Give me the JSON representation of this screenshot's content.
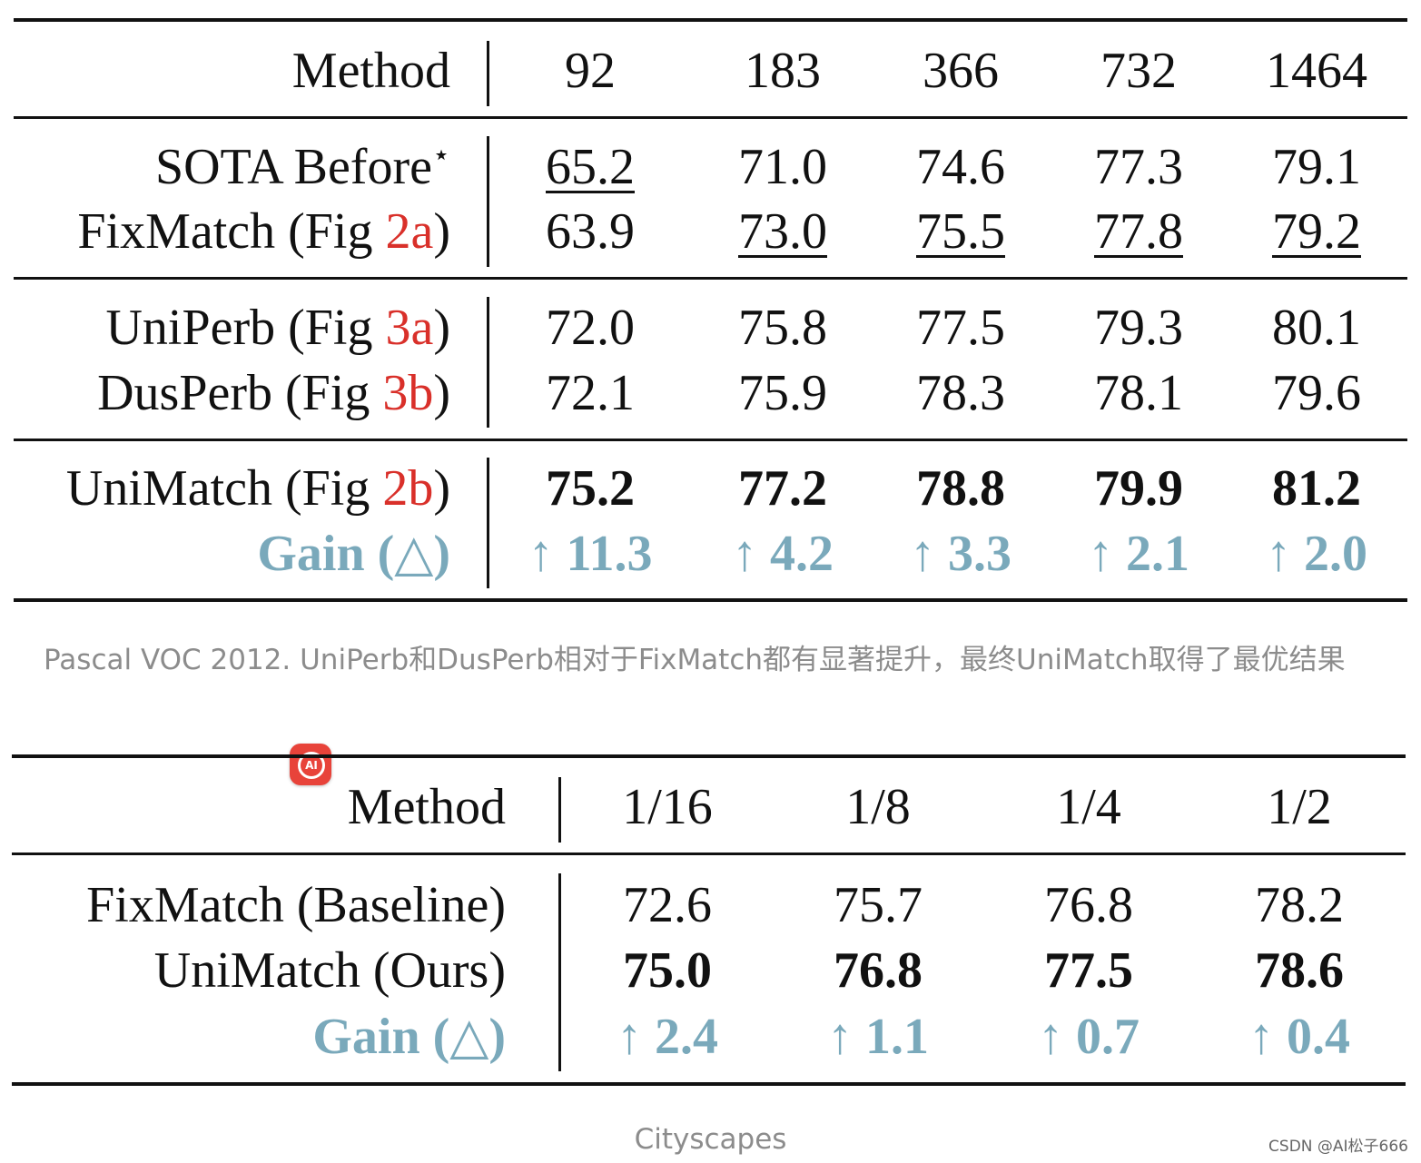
{
  "table1": {
    "header": [
      "Method",
      "92",
      "183",
      "366",
      "732",
      "1464"
    ],
    "rows": [
      {
        "method": "SOTA Before",
        "sup": "⋆",
        "values": [
          "65.2",
          "71.0",
          "74.6",
          "77.3",
          "79.1"
        ],
        "underline": [
          true,
          false,
          false,
          false,
          false
        ]
      },
      {
        "method": "FixMatch (Fig ",
        "ref": "2a",
        "close": ")",
        "values": [
          "63.9",
          "73.0",
          "75.5",
          "77.8",
          "79.2"
        ],
        "underline": [
          false,
          true,
          true,
          true,
          true
        ]
      },
      {
        "method": "UniPerb (Fig ",
        "ref": "3a",
        "close": ")",
        "values": [
          "72.0",
          "75.8",
          "77.5",
          "79.3",
          "80.1"
        ]
      },
      {
        "method": "DusPerb (Fig ",
        "ref": "3b",
        "close": ")",
        "values": [
          "72.1",
          "75.9",
          "78.3",
          "78.1",
          "79.6"
        ]
      },
      {
        "method": "UniMatch (Fig ",
        "ref": "2b",
        "close": ")",
        "values": [
          "75.2",
          "77.2",
          "78.8",
          "79.9",
          "81.2"
        ],
        "bold": true
      },
      {
        "method": "Gain (△)",
        "values": [
          "↑ 11.3",
          "↑ 4.2",
          "↑ 3.3",
          "↑ 2.1",
          "↑ 2.0"
        ],
        "gain": true
      }
    ],
    "caption": "Pascal VOC 2012. UniPerb和DusPerb相对于FixMatch都有显著提升，最终UniMatch取得了最优结果"
  },
  "table2": {
    "header": [
      "Method",
      "1/16",
      "1/8",
      "1/4",
      "1/2"
    ],
    "rows": [
      {
        "method": "FixMatch (Baseline)",
        "values": [
          "72.6",
          "75.7",
          "76.8",
          "78.2"
        ]
      },
      {
        "method": "UniMatch (Ours)",
        "values": [
          "75.0",
          "76.8",
          "77.5",
          "78.6"
        ],
        "bold": true
      },
      {
        "method": "Gain (△)",
        "values": [
          "↑ 2.4",
          "↑ 1.1",
          "↑ 0.7",
          "↑ 0.4"
        ],
        "gain": true
      }
    ],
    "caption": "Cityscapes"
  },
  "badge": {
    "icon": "ai-icon",
    "label": "AI",
    "color": "#e8433a"
  },
  "watermark": "CSDN @AI松子666",
  "colors": {
    "gain": "#7aa9bb",
    "fig_ref": "#d9302a"
  }
}
